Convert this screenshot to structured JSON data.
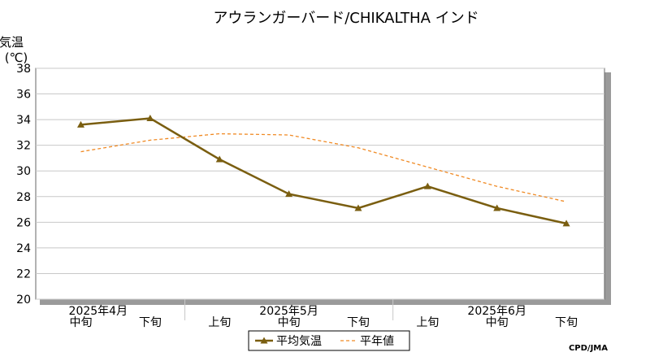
{
  "chart_data": {
    "type": "line",
    "title": "アウランガーバード/CHIKALTHA インド",
    "ylabel_line1": "気温",
    "ylabel_line2": "(℃)",
    "ylim": [
      20,
      38
    ],
    "y_ticks": [
      20,
      22,
      24,
      26,
      28,
      30,
      32,
      34,
      36,
      38
    ],
    "categories": [
      "中旬",
      "下旬",
      "上旬",
      "中旬",
      "下旬",
      "上旬",
      "中旬",
      "下旬"
    ],
    "month_labels": [
      "2025年4月",
      "2025年5月",
      "2025年6月"
    ],
    "series": [
      {
        "name": "平均気温",
        "values": [
          33.6,
          34.1,
          30.9,
          28.2,
          27.1,
          28.8,
          27.1,
          25.9
        ],
        "color": "#7a5e10",
        "style": "solid",
        "marker": "triangle"
      },
      {
        "name": "平年値",
        "values": [
          31.5,
          32.4,
          32.9,
          32.8,
          31.8,
          30.3,
          28.8,
          27.6
        ],
        "color": "#f08a24",
        "style": "dashed"
      }
    ],
    "grid": true,
    "legend_position": "bottom-center",
    "source_label": "CPD/JMA"
  }
}
